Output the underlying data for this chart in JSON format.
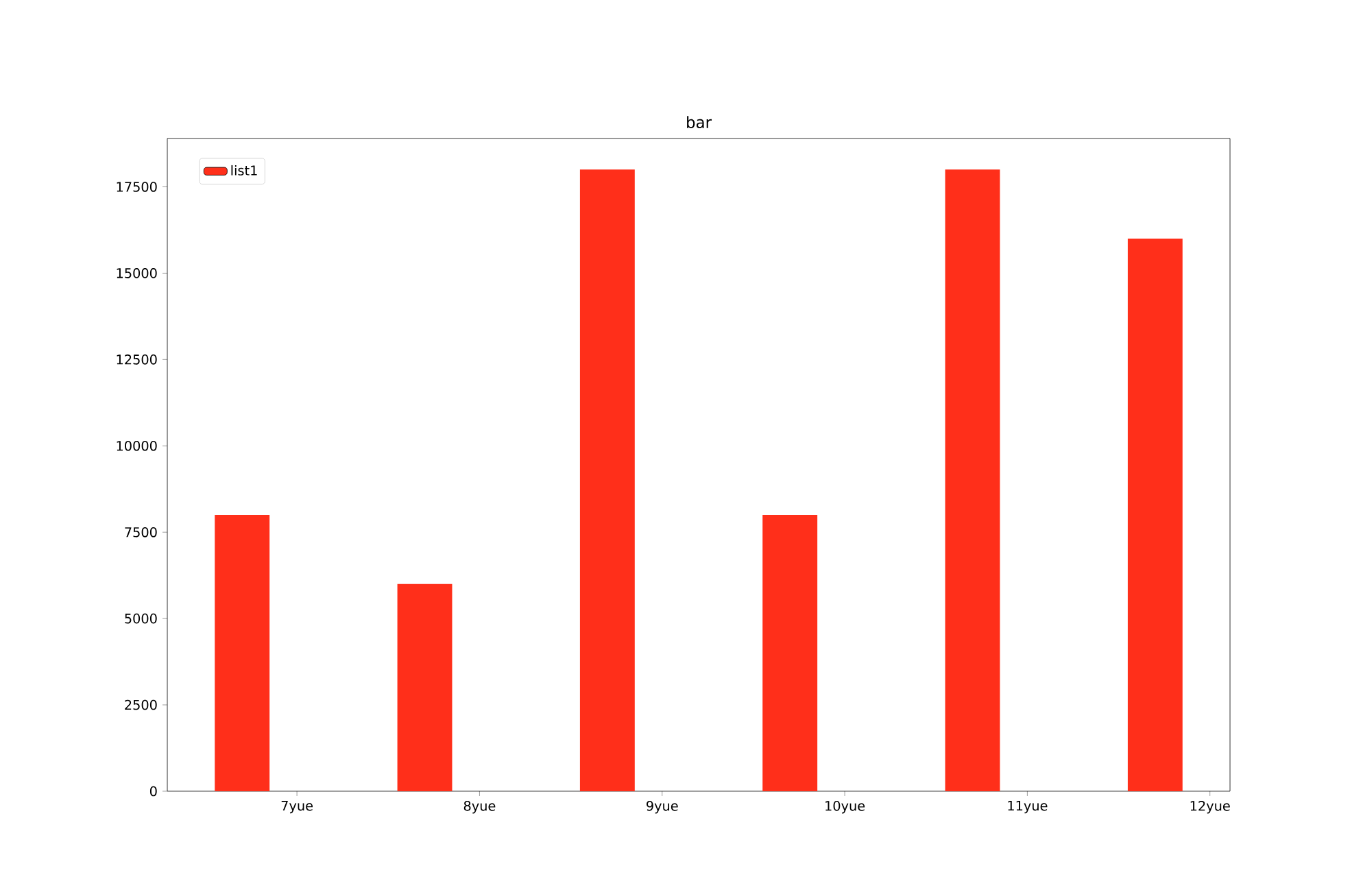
{
  "chart_data": {
    "type": "bar",
    "title": "bar",
    "categories": [
      "7yue",
      "8yue",
      "9yue",
      "10yue",
      "11yue",
      "12yue"
    ],
    "series": [
      {
        "name": "list1",
        "color": "#ff2f1a",
        "values": [
          8000,
          6000,
          18000,
          8000,
          18000,
          16000
        ]
      }
    ],
    "ylim": [
      0,
      18900
    ],
    "yticks": [
      0,
      2500,
      5000,
      7500,
      10000,
      12500,
      15000,
      17500
    ],
    "legend": "top left",
    "grid": false
  }
}
